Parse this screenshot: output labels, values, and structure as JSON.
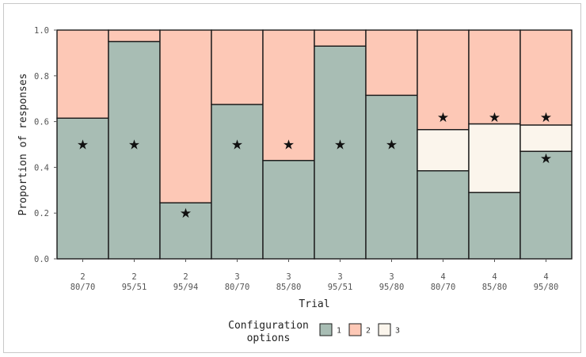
{
  "chart_data": {
    "type": "bar",
    "stacked": true,
    "xlabel": "Trial",
    "ylabel": "Proportion of responses",
    "ylim": [
      0,
      1
    ],
    "yticks": [
      "0.0",
      "0.2",
      "0.4",
      "0.6",
      "0.8",
      "1.0"
    ],
    "grid": true,
    "legend_position": "bottom",
    "legend_title": [
      "Configuration",
      "options"
    ],
    "categories": [
      [
        "2",
        "80/70"
      ],
      [
        "2",
        "95/51"
      ],
      [
        "2",
        "95/94"
      ],
      [
        "3",
        "80/70"
      ],
      [
        "3",
        "85/80"
      ],
      [
        "3",
        "95/51"
      ],
      [
        "3",
        "95/80"
      ],
      [
        "4",
        "80/70"
      ],
      [
        "4",
        "85/80"
      ],
      [
        "4",
        "95/80"
      ]
    ],
    "series": [
      {
        "name": "1",
        "color": "#a8bdb4",
        "values": [
          0.615,
          0.95,
          0.245,
          0.675,
          0.43,
          0.93,
          0.715,
          0.385,
          0.29,
          0.47
        ]
      },
      {
        "name": "3",
        "color": "#fbf5ec",
        "values": [
          0,
          0,
          0,
          0,
          0,
          0,
          0,
          0.18,
          0.3,
          0.115
        ]
      },
      {
        "name": "2",
        "color": "#fdc8b6",
        "values": [
          0.385,
          0.05,
          0.755,
          0.325,
          0.57,
          0.07,
          0.285,
          0.435,
          0.41,
          0.415
        ]
      }
    ],
    "legend_order": [
      "1",
      "2",
      "3"
    ],
    "annotations": [
      {
        "symbol": "★",
        "x": 0,
        "y": 0.5
      },
      {
        "symbol": "★",
        "x": 1,
        "y": 0.5
      },
      {
        "symbol": "★",
        "x": 2,
        "y": 0.2
      },
      {
        "symbol": "★",
        "x": 3,
        "y": 0.5
      },
      {
        "symbol": "★",
        "x": 4,
        "y": 0.5
      },
      {
        "symbol": "★",
        "x": 5,
        "y": 0.5
      },
      {
        "symbol": "★",
        "x": 6,
        "y": 0.5
      },
      {
        "symbol": "★",
        "x": 7,
        "y": 0.62
      },
      {
        "symbol": "★",
        "x": 8,
        "y": 0.62
      },
      {
        "symbol": "★",
        "x": 9,
        "y": 0.62
      },
      {
        "symbol": "★",
        "x": 9,
        "y": 0.44
      }
    ]
  }
}
